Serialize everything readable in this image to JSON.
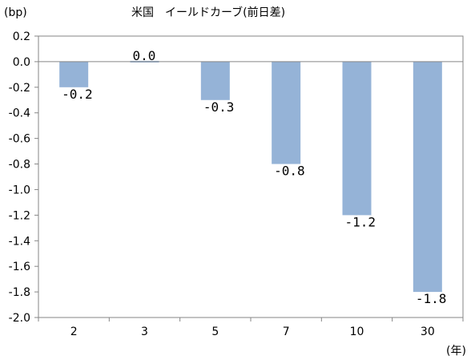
{
  "chart_data": {
    "type": "bar",
    "title": "米国　イールドカーブ(前日差)",
    "ylabel": "(bp)",
    "xlabel": "(年)",
    "categories": [
      "2",
      "3",
      "5",
      "7",
      "10",
      "30"
    ],
    "values": [
      -0.2,
      0.0,
      -0.3,
      -0.8,
      -1.2,
      -1.8
    ],
    "data_labels": [
      "-0.2",
      "0.0",
      "-0.3",
      "-0.8",
      "-1.2",
      "-1.8"
    ],
    "ylim": [
      -2.0,
      0.2
    ],
    "y_ticks": [
      "0.2",
      "0.0",
      "-0.2",
      "-0.4",
      "-0.6",
      "-0.8",
      "-1.0",
      "-1.2",
      "-1.4",
      "-1.6",
      "-1.8",
      "-2.0"
    ],
    "grid": false,
    "legend": "none",
    "colors": {
      "bar": "#95b3d7",
      "axis": "#868686",
      "zero_line": "#868686"
    }
  }
}
